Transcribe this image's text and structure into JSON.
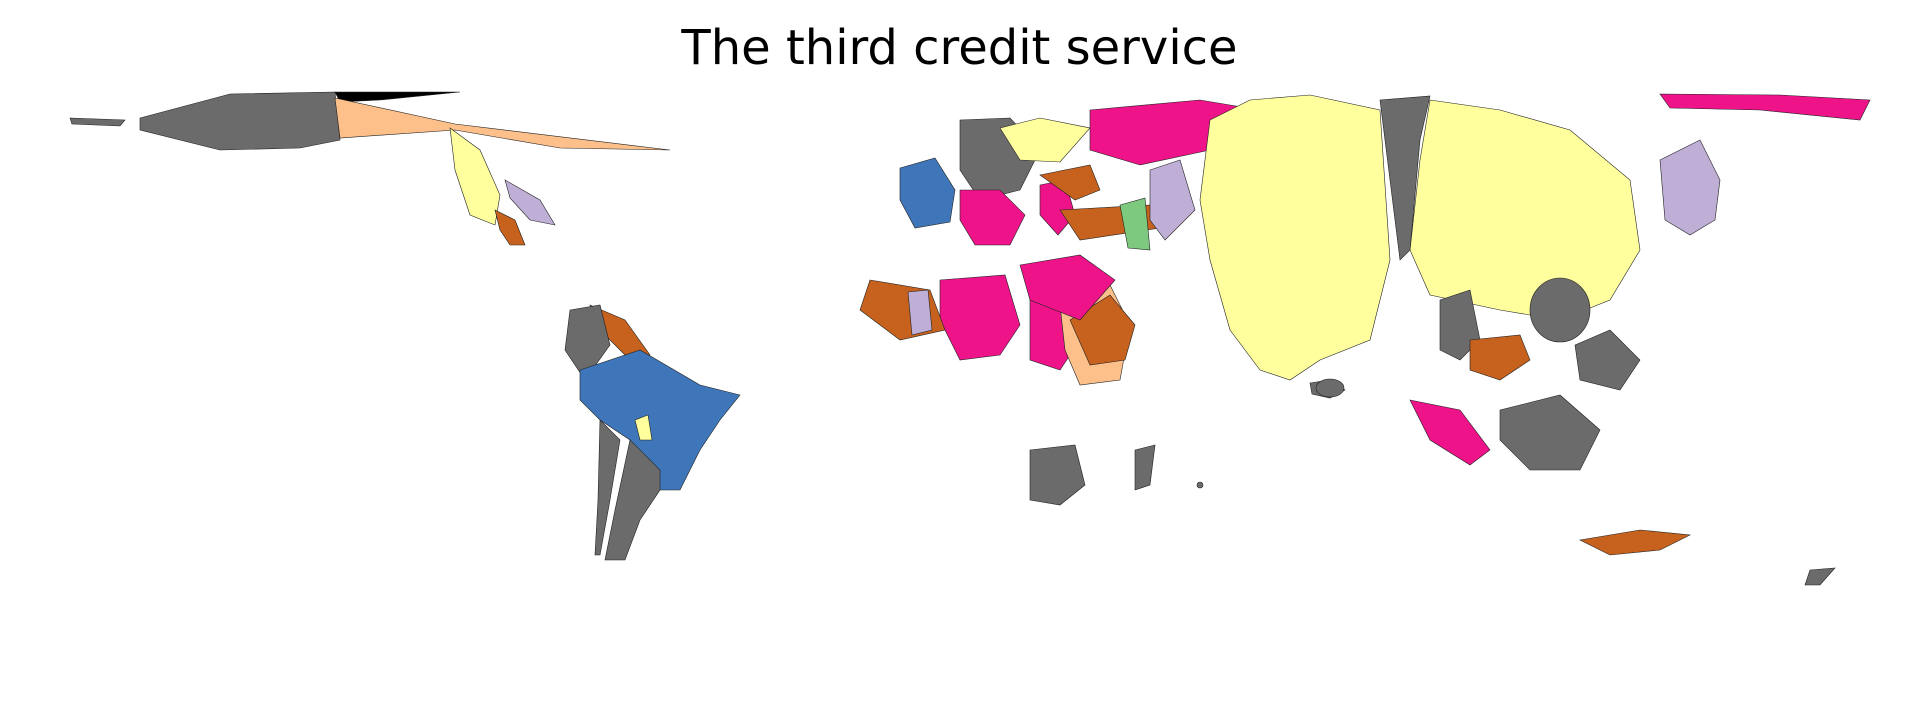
{
  "title": "The third credit service",
  "palette": {
    "gray": "#6b6b6b",
    "yellow": "#ffff9e",
    "pink": "#ef138a",
    "blue": "#3f76b9",
    "brown": "#c6621d",
    "peach": "#fdc08a",
    "lavender": "#bfafd7",
    "green": "#7dc97f",
    "black": "#000000"
  },
  "regions": [
    {
      "name": "canada-region",
      "fill": "gray"
    },
    {
      "name": "alaska-region",
      "fill": "gray"
    },
    {
      "name": "greenland-region",
      "fill": "black"
    },
    {
      "name": "usa-region",
      "fill": "peach"
    },
    {
      "name": "mexico-region",
      "fill": "yellow"
    },
    {
      "name": "central-america-region",
      "fill": "brown"
    },
    {
      "name": "caribbean-region",
      "fill": "lavender"
    },
    {
      "name": "venezuela-region",
      "fill": "brown"
    },
    {
      "name": "colombia-region",
      "fill": "gray"
    },
    {
      "name": "brazil-region",
      "fill": "blue"
    },
    {
      "name": "bolivia-region",
      "fill": "yellow"
    },
    {
      "name": "argentina-region",
      "fill": "gray"
    },
    {
      "name": "chile-region",
      "fill": "gray"
    },
    {
      "name": "europe-west-region",
      "fill": "gray"
    },
    {
      "name": "iberia-region",
      "fill": "blue"
    },
    {
      "name": "france-region",
      "fill": "pink"
    },
    {
      "name": "italy-region",
      "fill": "pink"
    },
    {
      "name": "balkans-region",
      "fill": "brown"
    },
    {
      "name": "scandinavia-region",
      "fill": "yellow"
    },
    {
      "name": "russia-region",
      "fill": "pink"
    },
    {
      "name": "turkey-region",
      "fill": "brown"
    },
    {
      "name": "north-africa-region",
      "fill": "pink"
    },
    {
      "name": "west-africa-region",
      "fill": "brown"
    },
    {
      "name": "sahel-region",
      "fill": "lavender"
    },
    {
      "name": "central-africa-region",
      "fill": "pink"
    },
    {
      "name": "east-africa-region",
      "fill": "peach"
    },
    {
      "name": "ethiopia-region",
      "fill": "brown"
    },
    {
      "name": "southern-africa-region",
      "fill": "gray"
    },
    {
      "name": "madagascar-region",
      "fill": "gray"
    },
    {
      "name": "saudi-arabia-region",
      "fill": "pink"
    },
    {
      "name": "iran-region",
      "fill": "lavender"
    },
    {
      "name": "central-asia-region",
      "fill": "green"
    },
    {
      "name": "india-region",
      "fill": "yellow"
    },
    {
      "name": "sri-lanka-region",
      "fill": "gray"
    },
    {
      "name": "china-region",
      "fill": "yellow"
    },
    {
      "name": "china-divider-region",
      "fill": "gray"
    },
    {
      "name": "mongolia-region",
      "fill": "gray"
    },
    {
      "name": "japan-region",
      "fill": "lavender"
    },
    {
      "name": "southeast-asia-region",
      "fill": "brown"
    },
    {
      "name": "philippines-region",
      "fill": "gray"
    },
    {
      "name": "indonesia-region",
      "fill": "pink"
    },
    {
      "name": "borneo-region",
      "fill": "gray"
    },
    {
      "name": "australia-region",
      "fill": "brown"
    },
    {
      "name": "new-zealand-region",
      "fill": "gray"
    },
    {
      "name": "siberia-east-region",
      "fill": "pink"
    }
  ]
}
